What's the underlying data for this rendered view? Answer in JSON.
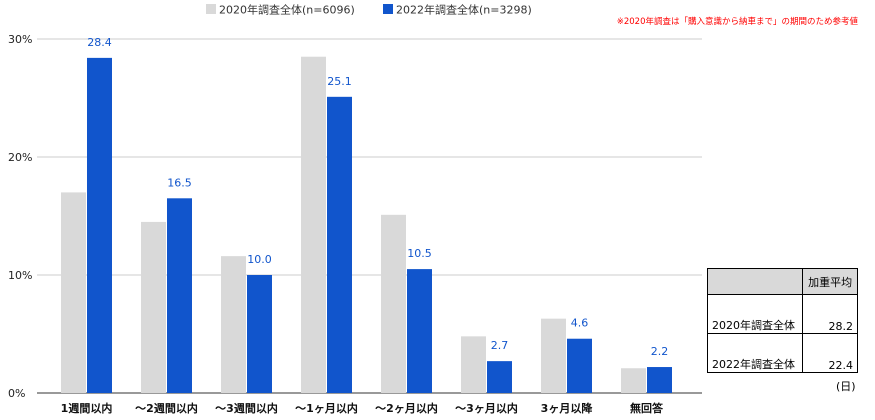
{
  "chart_data": {
    "type": "bar",
    "categories": [
      "1週間以内",
      "～2週間以内",
      "～3週間以内",
      "～1ヶ月以内",
      "～2ヶ月以内",
      "～3ヶ月以内",
      "3ヶ月以降",
      "無回答"
    ],
    "series": [
      {
        "name": "2020年調査全体(n=6096)",
        "color": "#d9d9d9",
        "values": [
          17.0,
          14.5,
          11.6,
          28.5,
          15.1,
          4.8,
          6.3,
          2.1
        ],
        "show_labels": false
      },
      {
        "name": "2022年調査全体(n=3298)",
        "color": "#1155cc",
        "values": [
          28.4,
          16.5,
          10.0,
          25.1,
          10.5,
          2.7,
          4.6,
          2.2
        ],
        "show_labels": true
      }
    ],
    "ylim": [
      0,
      30
    ],
    "yticks": [
      "0%",
      "10%",
      "20%",
      "30%"
    ],
    "ytick_values": [
      0,
      10,
      20,
      30
    ],
    "grid": true,
    "legend_position": "top",
    "note": "※2020年調査は「購入意識から納車まで」の期間のため参考値",
    "note_color": "#ff0000",
    "label_color": "#1155cc",
    "xlabel": "",
    "ylabel": ""
  },
  "table": {
    "header": "加重平均",
    "rows": [
      {
        "label": "2020年調査全体",
        "value": "28.2"
      },
      {
        "label": "2022年調査全体",
        "value": "22.4"
      }
    ],
    "unit": "(日)"
  }
}
